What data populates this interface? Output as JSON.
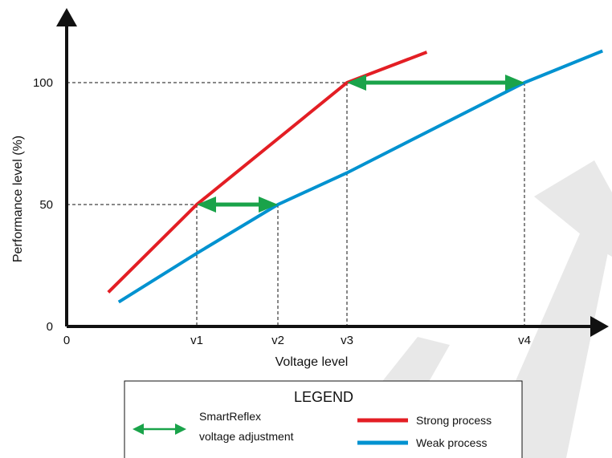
{
  "chart_data": {
    "type": "line",
    "xlabel": "Voltage level",
    "ylabel": "Performance level (%)",
    "x_ticks": [
      {
        "label": "0",
        "value": 0
      },
      {
        "label": "v1",
        "value": 1
      },
      {
        "label": "v2",
        "value": 2
      },
      {
        "label": "v3",
        "value": 3
      },
      {
        "label": "v4",
        "value": 4
      }
    ],
    "y_ticks": [
      {
        "label": "0",
        "value": 0
      },
      {
        "label": "50",
        "value": 50
      },
      {
        "label": "100",
        "value": 100
      }
    ],
    "series": [
      {
        "name": "Strong process",
        "color": "#e31e24",
        "points": [
          [
            0.32,
            14
          ],
          [
            1,
            50
          ],
          [
            3,
            100
          ],
          [
            3.45,
            112.5
          ]
        ]
      },
      {
        "name": "Weak process",
        "color": "#0092d0",
        "points": [
          [
            0.4,
            10
          ],
          [
            1,
            30
          ],
          [
            2,
            50
          ],
          [
            3,
            63
          ],
          [
            4,
            100
          ],
          [
            4.44,
            113
          ]
        ]
      }
    ],
    "guide_points": [
      {
        "x": 1,
        "y": 50
      },
      {
        "x": 2,
        "y": 50
      },
      {
        "x": 3,
        "y": 100
      },
      {
        "x": 4,
        "y": 100
      }
    ],
    "adjustments": [
      {
        "y": 50,
        "from": 1,
        "to": 2
      },
      {
        "y": 100,
        "from": 3,
        "to": 4
      }
    ],
    "legend": {
      "title": "LEGEND",
      "adjustment_label_line1": "SmartReflex",
      "adjustment_label_line2": "voltage adjustment",
      "strong_label": "Strong process",
      "weak_label": "Weak process"
    },
    "colors": {
      "strong": "#e31e24",
      "weak": "#0092d0",
      "arrow": "#1aa34a",
      "axis": "#111111",
      "watermark": "#e8e8e8"
    }
  }
}
